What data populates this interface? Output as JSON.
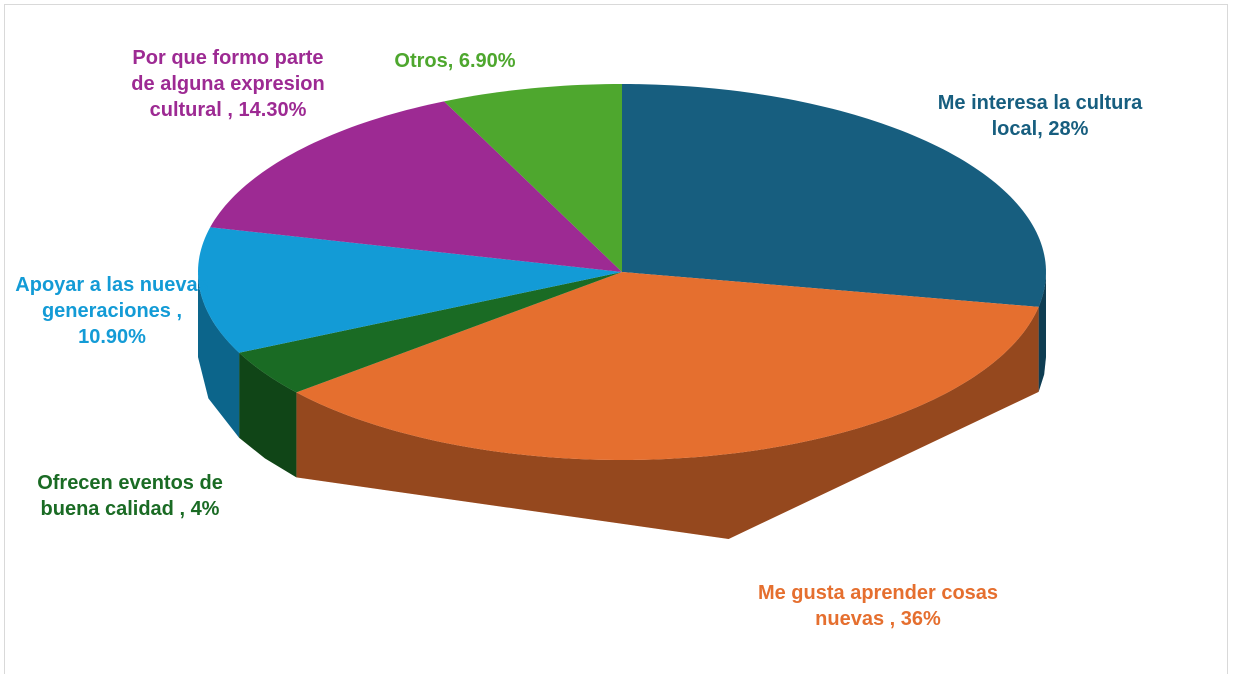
{
  "chart_data": {
    "type": "pie",
    "categories": [
      "Me interesa la cultura local,",
      "Me gusta aprender cosas nuevas ,",
      "Ofrecen eventos de buena calidad ,",
      "Apoyar a las nuevas generaciones ,",
      "Por que formo parte de alguna expresion cultural ,",
      "Otros,"
    ],
    "values": [
      28,
      36,
      4,
      10.9,
      14.3,
      6.9
    ],
    "value_labels": [
      "28%",
      "36%",
      "4%",
      "10.90%",
      "14.30%",
      "6.90%"
    ],
    "colors": [
      "#175e7f",
      "#e56f2f",
      "#1a6b24",
      "#139bd6",
      "#9d2a93",
      "#4ea72e"
    ]
  }
}
